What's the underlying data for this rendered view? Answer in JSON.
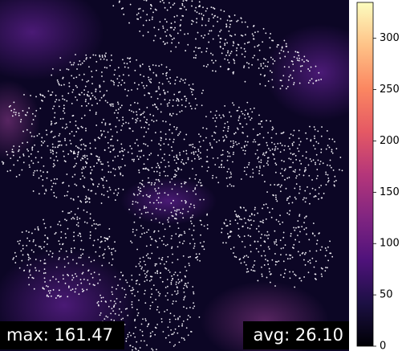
{
  "chart_data": {
    "type": "heatmap",
    "colormap": "magma",
    "clim": [
      0,
      335
    ],
    "cticks": [
      0,
      50,
      100,
      150,
      200,
      250,
      300
    ],
    "annotations": [
      "max: 161.47",
      "avg: 26.10"
    ]
  }
}
